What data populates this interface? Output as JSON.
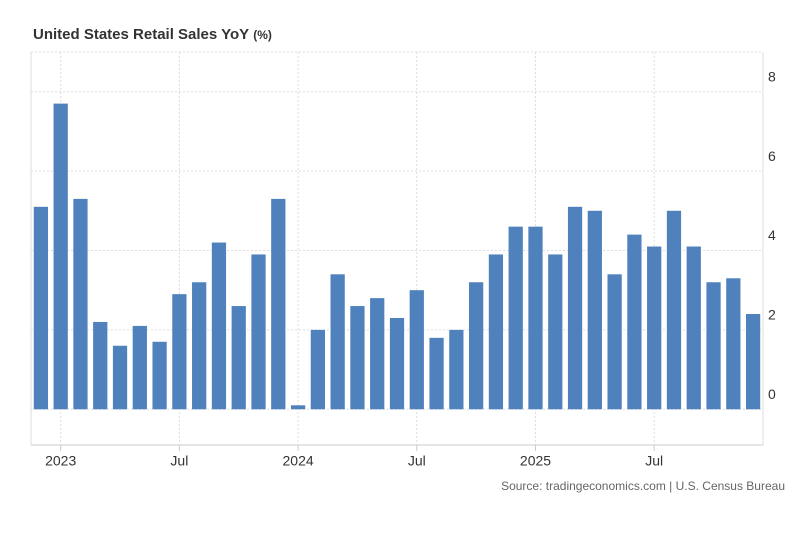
{
  "chart_data": {
    "type": "bar",
    "title": "United States Retail Sales YoY",
    "unit": "(%)",
    "categories": [
      null,
      "2023",
      null,
      null,
      null,
      null,
      null,
      "Jul",
      null,
      null,
      null,
      null,
      null,
      "2024",
      null,
      null,
      null,
      null,
      null,
      "Jul",
      null,
      null,
      null,
      null,
      null,
      "2025",
      null,
      null,
      null,
      null,
      null,
      "Jul",
      null,
      null,
      null,
      null,
      null
    ],
    "values": [
      5.1,
      7.7,
      5.3,
      2.2,
      1.6,
      2.1,
      1.7,
      2.9,
      3.2,
      4.2,
      2.6,
      3.9,
      5.3,
      0.1,
      2.0,
      3.4,
      2.6,
      2.8,
      2.3,
      3.0,
      1.8,
      2.0,
      3.2,
      3.9,
      4.6,
      4.6,
      3.9,
      5.1,
      5.0,
      3.4,
      4.4,
      4.1,
      5.0,
      4.1,
      3.2,
      3.3,
      2.4
    ],
    "color": "#4f81bd",
    "ylim": [
      -0.9,
      9
    ],
    "yticks": [
      0,
      2,
      4,
      6,
      8
    ],
    "grid": true,
    "source": "Source: tradingeconomics.com | U.S. Census Bureau"
  }
}
